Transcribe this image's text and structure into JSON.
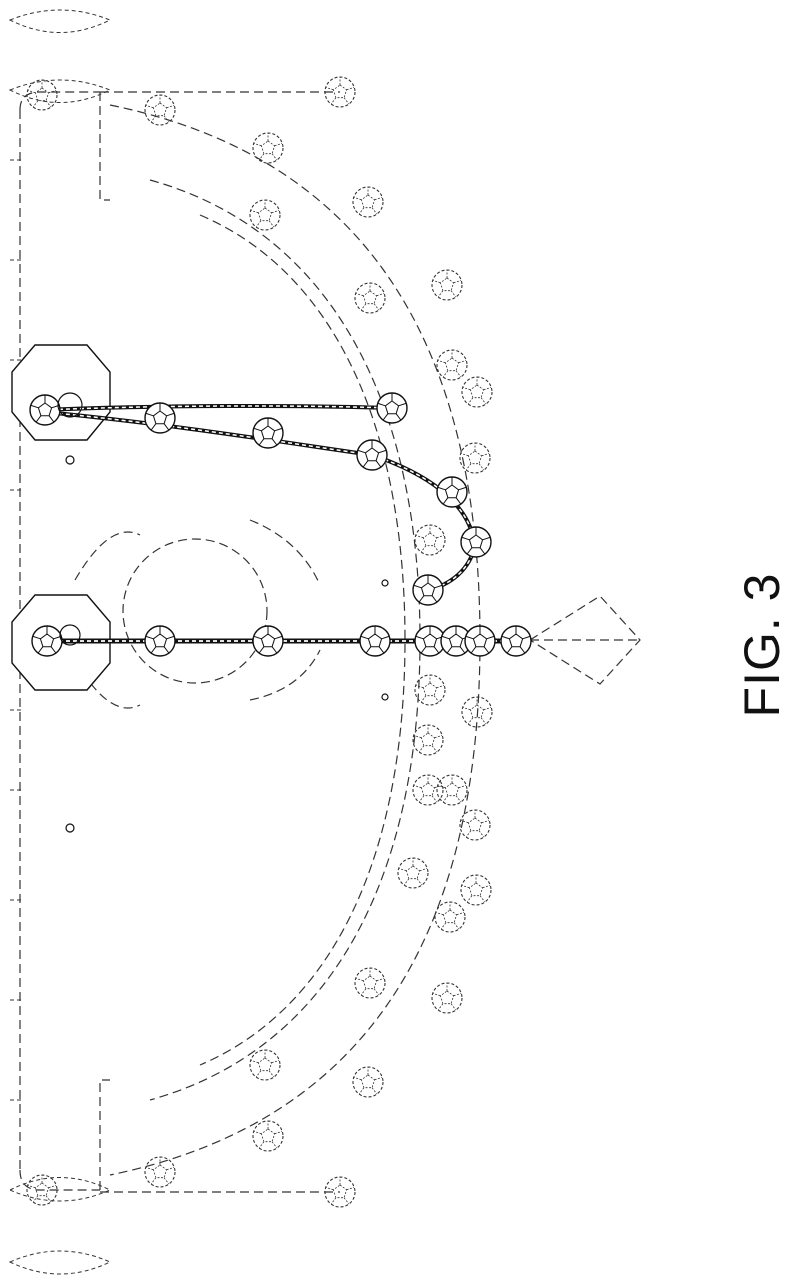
{
  "figure": {
    "label": "FIG. 3",
    "line_color": "#222222"
  }
}
